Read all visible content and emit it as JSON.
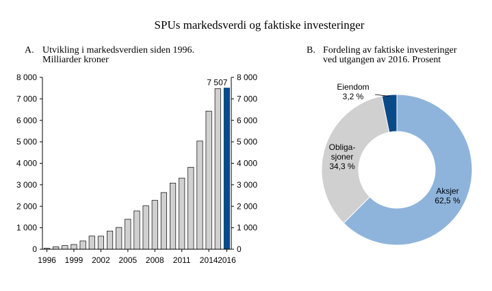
{
  "title": "SPUs markedsverdi og faktiske investeringer",
  "colors": {
    "bar": "#d0d0d0",
    "bar_highlight": "#0a4a87",
    "slice_aksjer": "#8fb4dc",
    "slice_obligasjoner": "#d0d0d0",
    "slice_eiendom": "#0a4a87",
    "stroke": "#000000"
  },
  "chart_data": [
    {
      "type": "bar",
      "panel": "A.",
      "title_lines": [
        "Utvikling i markedsverdien siden 1996.",
        "Milliarder kroner"
      ],
      "x": [
        1996,
        1997,
        1998,
        1999,
        2000,
        2001,
        2002,
        2003,
        2004,
        2005,
        2006,
        2007,
        2008,
        2009,
        2010,
        2011,
        2012,
        2013,
        2014,
        2015,
        2016
      ],
      "values": [
        47,
        113,
        172,
        222,
        386,
        614,
        609,
        845,
        1016,
        1399,
        1784,
        2019,
        2275,
        2640,
        3077,
        3312,
        3816,
        5038,
        6431,
        7475,
        7507
      ],
      "x_tick_labels": [
        "1996",
        "1999",
        "2002",
        "2005",
        "2008",
        "2011",
        "2014",
        "2016"
      ],
      "x_tick_positions": [
        1996,
        1999,
        2002,
        2005,
        2008,
        2011,
        2014,
        2016
      ],
      "y_tick_labels": [
        "0",
        "1 000",
        "2 000",
        "3 000",
        "4 000",
        "5 000",
        "6 000",
        "7 000",
        "8 000"
      ],
      "y_tick_values": [
        0,
        1000,
        2000,
        3000,
        4000,
        5000,
        6000,
        7000,
        8000
      ],
      "ylim": [
        0,
        8000
      ],
      "highlight_index": 20,
      "data_label": "7 507",
      "secondary_axis": true
    },
    {
      "type": "pie",
      "donut": true,
      "panel": "B.",
      "title_lines": [
        "Fordeling av faktiske investeringer",
        "ved utgangen av 2016. Prosent"
      ],
      "slices": [
        {
          "key": "aksjer",
          "label_lines": [
            "Aksjer",
            "62,5 %"
          ],
          "value": 62.5
        },
        {
          "key": "obligasjoner",
          "label_lines": [
            "Obliga-",
            "sjoner",
            "34,3 %"
          ],
          "value": 34.3
        },
        {
          "key": "eiendom",
          "label_lines": [
            "Eiendom",
            "3,2 %"
          ],
          "value": 3.2
        }
      ]
    }
  ]
}
